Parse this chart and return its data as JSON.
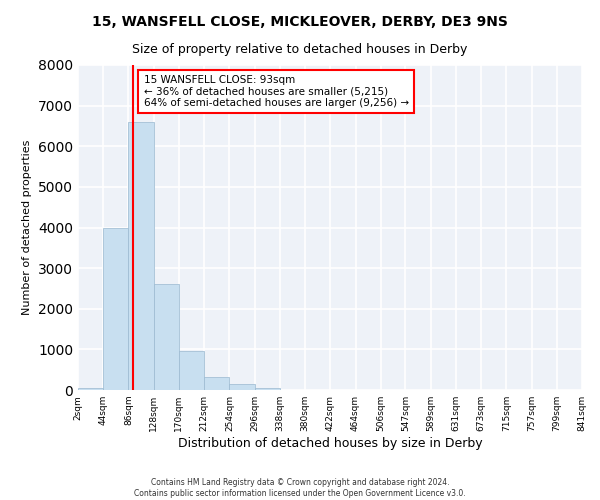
{
  "title": "15, WANSFELL CLOSE, MICKLEOVER, DERBY, DE3 9NS",
  "subtitle": "Size of property relative to detached houses in Derby",
  "xlabel": "Distribution of detached houses by size in Derby",
  "ylabel": "Number of detached properties",
  "bin_edges": [
    2,
    44,
    86,
    128,
    170,
    212,
    254,
    296,
    338,
    380,
    422,
    464,
    506,
    547,
    589,
    631,
    673,
    715,
    757,
    799,
    841
  ],
  "bin_labels": [
    "2sqm",
    "44sqm",
    "86sqm",
    "128sqm",
    "170sqm",
    "212sqm",
    "254sqm",
    "296sqm",
    "338sqm",
    "380sqm",
    "422sqm",
    "464sqm",
    "506sqm",
    "547sqm",
    "589sqm",
    "631sqm",
    "673sqm",
    "715sqm",
    "757sqm",
    "799sqm",
    "841sqm"
  ],
  "counts": [
    50,
    4000,
    6600,
    2600,
    970,
    330,
    140,
    50,
    0,
    0,
    0,
    0,
    0,
    0,
    0,
    0,
    0,
    0,
    0,
    0
  ],
  "bar_color": "#c8dff0",
  "bar_edge_color": "#9ab8d0",
  "property_line_x": 93,
  "property_line_color": "red",
  "annotation_title": "15 WANSFELL CLOSE: 93sqm",
  "annotation_line1": "← 36% of detached houses are smaller (5,215)",
  "annotation_line2": "64% of semi-detached houses are larger (9,256) →",
  "annotation_box_color": "white",
  "annotation_box_edge_color": "red",
  "ylim": [
    0,
    8000
  ],
  "yticks": [
    0,
    1000,
    2000,
    3000,
    4000,
    5000,
    6000,
    7000,
    8000
  ],
  "footer_line1": "Contains HM Land Registry data © Crown copyright and database right 2024.",
  "footer_line2": "Contains public sector information licensed under the Open Government Licence v3.0.",
  "bg_color": "#ffffff",
  "plot_bg_color": "#eef2f8"
}
